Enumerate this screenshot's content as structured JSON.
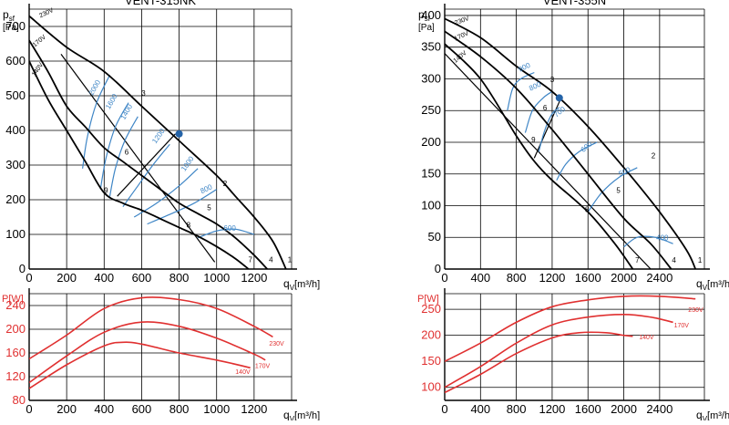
{
  "chart_data": [
    {
      "type": "line",
      "title": "VENT-315NK",
      "ylabel_main": "p",
      "ylabel_sub": "sf",
      "ylabel_unit": "[Pa]",
      "xlabel_main": "q",
      "xlabel_sub": "V",
      "xlabel_unit": "[m³/h]",
      "xlim": [
        0,
        1400
      ],
      "ylim": [
        0,
        750
      ],
      "xticks": [
        0,
        200,
        400,
        600,
        800,
        1000,
        1200
      ],
      "yticks": [
        0,
        100,
        200,
        300,
        400,
        500,
        600,
        700
      ],
      "series": [
        {
          "name": "230V",
          "x": [
            0,
            200,
            400,
            600,
            800,
            1000,
            1100,
            1200,
            1300,
            1370
          ],
          "y": [
            730,
            640,
            570,
            470,
            370,
            270,
            210,
            150,
            80,
            0
          ]
        },
        {
          "name": "170V",
          "x": [
            0,
            100,
            200,
            300,
            400,
            500,
            600,
            700,
            800,
            900,
            1000,
            1100,
            1200,
            1270
          ],
          "y": [
            660,
            570,
            470,
            410,
            350,
            310,
            270,
            230,
            190,
            160,
            130,
            90,
            40,
            0
          ]
        },
        {
          "name": "140V",
          "x": [
            0,
            100,
            200,
            300,
            400,
            500,
            600,
            700,
            800,
            900,
            1000,
            1100,
            1170
          ],
          "y": [
            600,
            490,
            400,
            310,
            220,
            190,
            170,
            145,
            120,
            95,
            65,
            30,
            0
          ]
        }
      ],
      "extra_lines": [
        {
          "x": [
            170,
            990
          ],
          "y": [
            620,
            20
          ]
        },
        {
          "x": [
            470,
            780
          ],
          "y": [
            210,
            390
          ]
        }
      ],
      "point_labels": [
        {
          "text": "1",
          "x": 1390,
          "y": 20
        },
        {
          "text": "2",
          "x": 1045,
          "y": 240
        },
        {
          "text": "3",
          "x": 610,
          "y": 500
        },
        {
          "text": "4",
          "x": 1290,
          "y": 20
        },
        {
          "text": "5",
          "x": 960,
          "y": 170
        },
        {
          "text": "6",
          "x": 520,
          "y": 330
        },
        {
          "text": "7",
          "x": 1180,
          "y": 20
        },
        {
          "text": "8",
          "x": 850,
          "y": 120
        },
        {
          "text": "9",
          "x": 410,
          "y": 220
        }
      ],
      "series_labels": [
        {
          "text": "230V",
          "x": 60,
          "y": 725,
          "angle": -25
        },
        {
          "text": "170V",
          "x": 30,
          "y": 640,
          "angle": -40
        },
        {
          "text": "140V",
          "x": 30,
          "y": 555,
          "angle": -55
        }
      ],
      "rpm_curves": [
        {
          "label": "2000",
          "x": [
            285,
            310,
            360,
            430
          ],
          "y": [
            290,
            380,
            480,
            560
          ]
        },
        {
          "label": "1600",
          "x": [
            380,
            410,
            460,
            530
          ],
          "y": [
            230,
            320,
            410,
            480
          ]
        },
        {
          "label": "1400",
          "x": [
            430,
            460,
            510,
            580
          ],
          "y": [
            210,
            290,
            370,
            440
          ]
        },
        {
          "label": "1200",
          "x": [
            500,
            580,
            660,
            750
          ],
          "y": [
            180,
            240,
            300,
            360
          ]
        },
        {
          "label": "1000",
          "x": [
            560,
            680,
            800,
            900
          ],
          "y": [
            150,
            190,
            240,
            290
          ]
        },
        {
          "label": "800",
          "x": [
            630,
            760,
            880,
            1000
          ],
          "y": [
            130,
            160,
            190,
            230
          ]
        },
        {
          "label": "600",
          "x": [
            900,
            1000,
            1100,
            1200
          ],
          "y": [
            90,
            110,
            115,
            100
          ]
        }
      ],
      "rpm_label_pos": [
        {
          "x": 360,
          "y": 520,
          "angle": -60
        },
        {
          "x": 450,
          "y": 480,
          "angle": -60
        },
        {
          "x": 530,
          "y": 450,
          "angle": -60
        },
        {
          "x": 700,
          "y": 380,
          "angle": -55
        },
        {
          "x": 855,
          "y": 300,
          "angle": -55
        },
        {
          "x": 950,
          "y": 225,
          "angle": -25
        },
        {
          "x": 1070,
          "y": 110,
          "angle": 0
        }
      ],
      "operating_point": {
        "x": 800,
        "y": 390
      }
    },
    {
      "type": "line",
      "title": "",
      "ylabel_unit": "P[W]",
      "xlabel_main": "q",
      "xlabel_sub": "V",
      "xlabel_unit": "[m³/h]",
      "xlim": [
        0,
        1400
      ],
      "ylim": [
        80,
        260
      ],
      "xticks": [
        0,
        200,
        400,
        600,
        800,
        1000,
        1200
      ],
      "yticks": [
        80,
        120,
        160,
        200,
        240
      ],
      "series": [
        {
          "name": "230V",
          "x": [
            0,
            200,
            400,
            600,
            800,
            1000,
            1200,
            1300
          ],
          "y": [
            150,
            190,
            235,
            253,
            250,
            235,
            205,
            187
          ]
        },
        {
          "name": "170V",
          "x": [
            0,
            200,
            400,
            600,
            800,
            1000,
            1200,
            1260
          ],
          "y": [
            110,
            155,
            195,
            212,
            205,
            185,
            158,
            148
          ]
        },
        {
          "name": "140V",
          "x": [
            0,
            200,
            400,
            500,
            600,
            800,
            1000,
            1180
          ],
          "y": [
            100,
            140,
            172,
            178,
            175,
            160,
            148,
            135
          ]
        }
      ],
      "series_labels": [
        {
          "text": "230V",
          "x": 1280,
          "y": 172
        },
        {
          "text": "170V",
          "x": 1205,
          "y": 135
        },
        {
          "text": "140V",
          "x": 1100,
          "y": 125
        }
      ]
    },
    {
      "type": "line",
      "title": "VENT-355N",
      "ylabel_main": "p",
      "ylabel_sub": "sf",
      "ylabel_unit": "[Pa]",
      "xlabel_main": "q",
      "xlabel_sub": "V",
      "xlabel_unit": "[m³/h]",
      "xlim": [
        0,
        2900
      ],
      "ylim": [
        0,
        410
      ],
      "xticks": [
        0,
        400,
        800,
        1200,
        1600,
        2000,
        2400
      ],
      "yticks": [
        0,
        50,
        100,
        150,
        200,
        250,
        300,
        350,
        400
      ],
      "series": [
        {
          "name": "230V",
          "x": [
            0,
            400,
            800,
            1200,
            1600,
            2000,
            2400,
            2700,
            2800
          ],
          "y": [
            395,
            365,
            320,
            280,
            225,
            160,
            90,
            30,
            0
          ]
        },
        {
          "name": "170V",
          "x": [
            0,
            400,
            800,
            1200,
            1600,
            2000,
            2300,
            2530
          ],
          "y": [
            375,
            335,
            285,
            220,
            150,
            80,
            40,
            0
          ]
        },
        {
          "name": "140V",
          "x": [
            0,
            400,
            800,
            1000,
            1200,
            1600,
            1900,
            2100
          ],
          "y": [
            355,
            300,
            210,
            170,
            140,
            90,
            40,
            0
          ]
        }
      ],
      "extra_lines": [
        {
          "x": [
            0,
            2300
          ],
          "y": [
            340,
            0
          ]
        },
        {
          "x": [
            1000,
            1300
          ],
          "y": [
            175,
            270
          ]
        }
      ],
      "point_labels": [
        {
          "text": "1",
          "x": 2850,
          "y": 10
        },
        {
          "text": "2",
          "x": 2330,
          "y": 175
        },
        {
          "text": "3",
          "x": 1200,
          "y": 295
        },
        {
          "text": "4",
          "x": 2560,
          "y": 10
        },
        {
          "text": "5",
          "x": 1940,
          "y": 120
        },
        {
          "text": "6",
          "x": 1120,
          "y": 250
        },
        {
          "text": "7",
          "x": 2150,
          "y": 10
        },
        {
          "text": "8",
          "x": 1590,
          "y": 90
        },
        {
          "text": "9",
          "x": 990,
          "y": 200
        }
      ],
      "series_labels": [
        {
          "text": "230V",
          "x": 120,
          "y": 385,
          "angle": -20
        },
        {
          "text": "170V",
          "x": 120,
          "y": 360,
          "angle": -25
        },
        {
          "text": "140V",
          "x": 120,
          "y": 325,
          "angle": -40
        }
      ],
      "rpm_curves": [
        {
          "label": "900",
          "x": [
            700,
            760,
            850,
            1000
          ],
          "y": [
            250,
            285,
            300,
            310
          ]
        },
        {
          "label": "800",
          "x": [
            900,
            980,
            1100,
            1200
          ],
          "y": [
            215,
            250,
            270,
            280
          ]
        },
        {
          "label": "700",
          "x": [
            1050,
            1120,
            1200,
            1280
          ],
          "y": [
            185,
            220,
            245,
            255
          ]
        },
        {
          "label": "600",
          "x": [
            1250,
            1350,
            1500,
            1700
          ],
          "y": [
            140,
            165,
            185,
            200
          ]
        },
        {
          "label": "500",
          "x": [
            1600,
            1750,
            1950,
            2150
          ],
          "y": [
            90,
            120,
            145,
            160
          ]
        },
        {
          "label": "400",
          "x": [
            2000,
            2150,
            2350,
            2550
          ],
          "y": [
            35,
            50,
            50,
            40
          ]
        }
      ],
      "rpm_label_pos": [
        {
          "x": 900,
          "y": 315,
          "angle": -25
        },
        {
          "x": 1020,
          "y": 285,
          "angle": -25
        },
        {
          "x": 1300,
          "y": 245,
          "angle": -40
        },
        {
          "x": 1600,
          "y": 190,
          "angle": -40
        },
        {
          "x": 2020,
          "y": 150,
          "angle": -25
        },
        {
          "x": 2430,
          "y": 45,
          "angle": 0
        }
      ],
      "operating_point": {
        "x": 1280,
        "y": 270
      }
    },
    {
      "type": "line",
      "title": "",
      "ylabel_unit": "P[W]",
      "xlabel_main": "q",
      "xlabel_sub": "V",
      "xlabel_unit": "[m³/h]",
      "xlim": [
        0,
        2900
      ],
      "ylim": [
        75,
        280
      ],
      "xticks": [
        0,
        400,
        800,
        1200,
        1600,
        2000,
        2400
      ],
      "yticks": [
        100,
        150,
        200,
        250
      ],
      "series": [
        {
          "name": "230V",
          "x": [
            0,
            400,
            800,
            1200,
            1600,
            2000,
            2400,
            2800
          ],
          "y": [
            150,
            185,
            225,
            255,
            268,
            275,
            275,
            270
          ]
        },
        {
          "name": "170V",
          "x": [
            0,
            400,
            800,
            1200,
            1600,
            2000,
            2300,
            2550
          ],
          "y": [
            100,
            140,
            185,
            220,
            235,
            240,
            235,
            225
          ]
        },
        {
          "name": "140V",
          "x": [
            0,
            400,
            800,
            1200,
            1500,
            1800,
            2000,
            2100
          ],
          "y": [
            90,
            125,
            165,
            195,
            205,
            205,
            200,
            198
          ]
        }
      ],
      "series_labels": [
        {
          "text": "230V",
          "x": 2720,
          "y": 245
        },
        {
          "text": "170V",
          "x": 2560,
          "y": 215
        },
        {
          "text": "140V",
          "x": 2170,
          "y": 192
        }
      ]
    }
  ],
  "colors": {
    "axis": "#000000",
    "grid": "#000000",
    "pressure_curve": "#000000",
    "rpm_curve": "#3f86c6",
    "rpm_label": "#3f86c6",
    "operating_point": "#2463a8",
    "power_curve": "#e03030",
    "power_label": "#e03030",
    "power_axis_label": "#e03030",
    "series_label": "#000000"
  }
}
